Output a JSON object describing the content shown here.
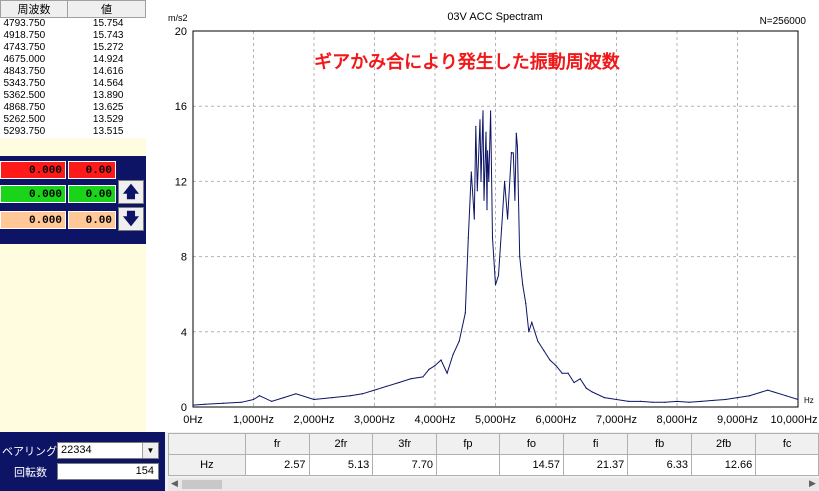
{
  "peak_table": {
    "headers": [
      "周波数",
      "値"
    ],
    "rows": [
      [
        "4793.750",
        "15.754"
      ],
      [
        "4918.750",
        "15.743"
      ],
      [
        "4743.750",
        "15.272"
      ],
      [
        "4675.000",
        "14.924"
      ],
      [
        "4843.750",
        "14.616"
      ],
      [
        "5343.750",
        "14.564"
      ],
      [
        "5362.500",
        "13.890"
      ],
      [
        "4868.750",
        "13.625"
      ],
      [
        "5262.500",
        "13.529"
      ],
      [
        "5293.750",
        "13.515"
      ]
    ]
  },
  "cursors": [
    {
      "value": "0.000",
      "amp": "0.00",
      "color": "#ff1a1a"
    },
    {
      "value": "0.000",
      "amp": "0.00",
      "color": "#1ad41a"
    },
    {
      "value": "0.000",
      "amp": "0.00",
      "color": "#ffc896"
    }
  ],
  "arrows": {
    "up": "🡅",
    "down": "🡇"
  },
  "bearing": {
    "label": "ベアリング",
    "value": "22334",
    "dropdown_icon": "▼"
  },
  "rotation": {
    "label": "回転数",
    "value": "154"
  },
  "results": {
    "headers": [
      "",
      "fr",
      "2fr",
      "3fr",
      "fp",
      "fo",
      "fi",
      "fb",
      "2fb",
      "fc"
    ],
    "row_label": "Hz",
    "values": [
      "2.57",
      "5.13",
      "7.70",
      "",
      "14.57",
      "21.37",
      "6.33",
      "12.66",
      ""
    ]
  },
  "chart_data": {
    "type": "line",
    "title": "03V ACC Spectram",
    "ylabel": "m/s2",
    "xlabel": "Hz",
    "n_label": "N=256000",
    "annotation": "ギアかみ合により発生した振動周波数",
    "xlim": [
      0,
      10000
    ],
    "ylim": [
      0,
      20
    ],
    "x_ticks": [
      "0Hz",
      "1,000Hz",
      "2,000Hz",
      "3,000Hz",
      "4,000Hz",
      "5,000Hz",
      "6,000Hz",
      "7,000Hz",
      "8,000Hz",
      "9,000Hz",
      "10,000Hz"
    ],
    "y_ticks": [
      "0",
      "4",
      "8",
      "12",
      "16",
      "20"
    ],
    "grid": true,
    "line_color": "#0d1466",
    "series": [
      {
        "x": [
          0,
          200,
          500,
          800,
          1000,
          1100,
          1300,
          1500,
          1700,
          2000,
          2300,
          2600,
          2800,
          3000,
          3200,
          3400,
          3600,
          3800,
          3900,
          4000,
          4100,
          4200,
          4300,
          4400,
          4500,
          4550,
          4600,
          4650,
          4675,
          4700,
          4743.75,
          4760,
          4793.75,
          4810,
          4843.75,
          4860,
          4868.75,
          4890,
          4918.75,
          4950,
          5000,
          5050,
          5100,
          5150,
          5200,
          5262.5,
          5293.75,
          5320,
          5343.75,
          5362.5,
          5400,
          5450,
          5500,
          5550,
          5600,
          5700,
          5800,
          5900,
          6000,
          6100,
          6200,
          6300,
          6400,
          6500,
          6600,
          6800,
          7000,
          7200,
          7400,
          7600,
          7800,
          8000,
          8200,
          8400,
          8600,
          8800,
          9000,
          9200,
          9400,
          9500,
          9600,
          9800,
          10000
        ],
        "y": [
          0.1,
          0.15,
          0.2,
          0.25,
          0.4,
          0.6,
          0.3,
          0.5,
          0.7,
          0.4,
          0.5,
          0.6,
          0.7,
          0.9,
          1.1,
          1.3,
          1.5,
          1.6,
          2.0,
          2.2,
          2.5,
          1.8,
          2.8,
          3.5,
          5.0,
          9.0,
          12.5,
          10.0,
          14.924,
          11.5,
          15.272,
          12.0,
          15.754,
          11.0,
          14.616,
          10.5,
          13.625,
          12.0,
          15.743,
          9.0,
          6.5,
          7.0,
          9.5,
          12.0,
          10.0,
          13.529,
          13.515,
          11.0,
          14.564,
          13.89,
          8.0,
          6.5,
          5.5,
          4.0,
          4.5,
          3.5,
          3.0,
          2.5,
          2.2,
          1.8,
          1.8,
          1.3,
          1.5,
          1.0,
          0.8,
          0.5,
          0.4,
          0.3,
          0.3,
          0.25,
          0.25,
          0.3,
          0.25,
          0.3,
          0.35,
          0.4,
          0.5,
          0.6,
          0.8,
          0.9,
          0.8,
          0.6,
          0.4
        ]
      }
    ]
  }
}
